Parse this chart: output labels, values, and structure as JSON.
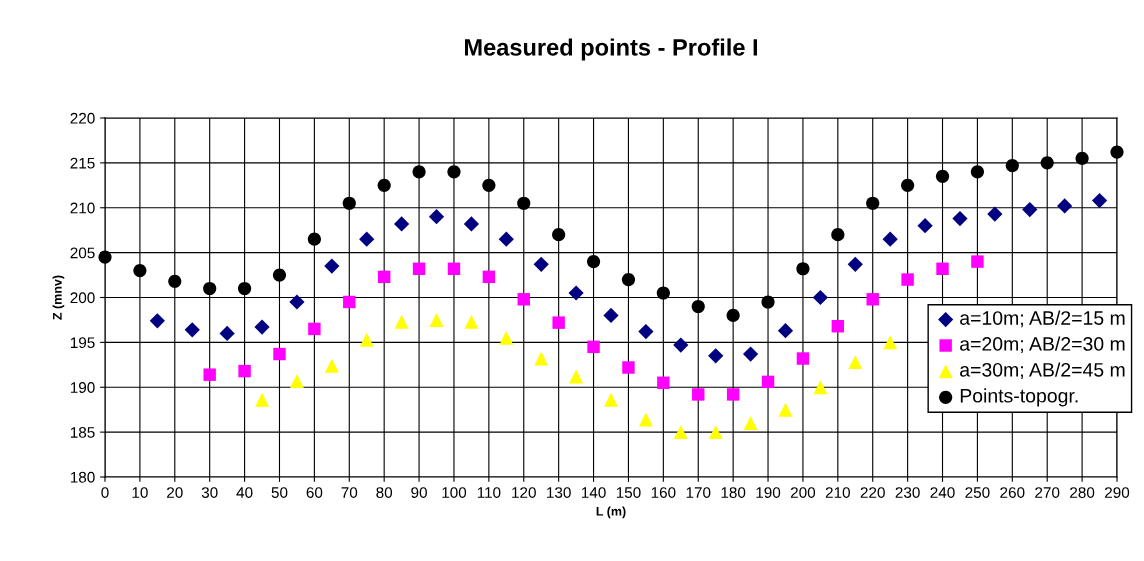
{
  "chart_data": {
    "type": "scatter",
    "title": "Measured points - Profile I",
    "xlabel": "L (m)",
    "ylabel": "Z (mnv)",
    "xlim": [
      0,
      290
    ],
    "xticks": [
      0,
      10,
      20,
      30,
      40,
      50,
      60,
      70,
      80,
      90,
      100,
      110,
      120,
      130,
      140,
      150,
      160,
      170,
      180,
      190,
      200,
      210,
      220,
      230,
      240,
      250,
      260,
      270,
      280,
      290
    ],
    "ylim": [
      180,
      220
    ],
    "yticks": [
      180,
      185,
      190,
      195,
      200,
      205,
      210,
      215,
      220
    ],
    "grid": true,
    "legend": "right",
    "series": [
      {
        "name": "a=10m; AB/2=15 m",
        "color": "#000080",
        "marker": "diamond",
        "x": [
          15,
          25,
          35,
          45,
          55,
          65,
          75,
          85,
          95,
          105,
          115,
          125,
          135,
          145,
          155,
          165,
          175,
          185,
          195,
          205,
          215,
          225,
          235,
          245,
          255,
          265,
          275,
          285
        ],
        "values": [
          197.4,
          196.4,
          196,
          196.7,
          199.5,
          203.5,
          206.5,
          208.2,
          209,
          208.2,
          206.5,
          203.7,
          200.5,
          198,
          196.2,
          194.7,
          193.5,
          193.7,
          196.3,
          200,
          203.7,
          206.5,
          208,
          208.8,
          209.3,
          209.8,
          210.2,
          210.8
        ]
      },
      {
        "name": "a=20m; AB/2=30 m",
        "color": "#ff00ff",
        "marker": "square",
        "x": [
          30,
          40,
          50,
          60,
          70,
          80,
          90,
          100,
          110,
          120,
          130,
          140,
          150,
          160,
          170,
          180,
          190,
          200,
          210,
          220,
          230,
          240,
          250
        ],
        "values": [
          191.4,
          191.8,
          193.7,
          196.5,
          199.5,
          202.3,
          203.2,
          203.2,
          202.3,
          199.8,
          197.2,
          194.5,
          192.2,
          190.5,
          189.2,
          189.2,
          190.6,
          193.2,
          196.8,
          199.8,
          202,
          203.2,
          204
        ]
      },
      {
        "name": "a=30m; AB/2=45 m",
        "color": "#ffff00",
        "marker": "triangle",
        "x": [
          45,
          55,
          65,
          75,
          85,
          95,
          105,
          115,
          125,
          135,
          145,
          155,
          165,
          175,
          185,
          195,
          205,
          215,
          225
        ],
        "values": [
          188.6,
          190.7,
          192.4,
          195.3,
          197.3,
          197.5,
          197.3,
          195.5,
          193.2,
          191.2,
          188.6,
          186.4,
          185,
          185,
          186,
          187.5,
          190,
          192.8,
          195
        ]
      },
      {
        "name": "Points-topogr.",
        "color": "#000000",
        "marker": "circle",
        "x": [
          0,
          10,
          20,
          30,
          40,
          50,
          60,
          70,
          80,
          90,
          100,
          110,
          120,
          130,
          140,
          150,
          160,
          170,
          180,
          190,
          200,
          210,
          220,
          230,
          240,
          250,
          260,
          270,
          280,
          290
        ],
        "values": [
          204.5,
          203,
          201.8,
          201,
          201,
          202.5,
          206.5,
          210.5,
          212.5,
          214,
          214,
          212.5,
          210.5,
          207,
          204,
          202,
          200.5,
          199,
          198,
          199.5,
          203.2,
          207,
          210.5,
          212.5,
          213.5,
          214,
          214.7,
          215,
          215.5,
          216.2
        ]
      }
    ]
  }
}
